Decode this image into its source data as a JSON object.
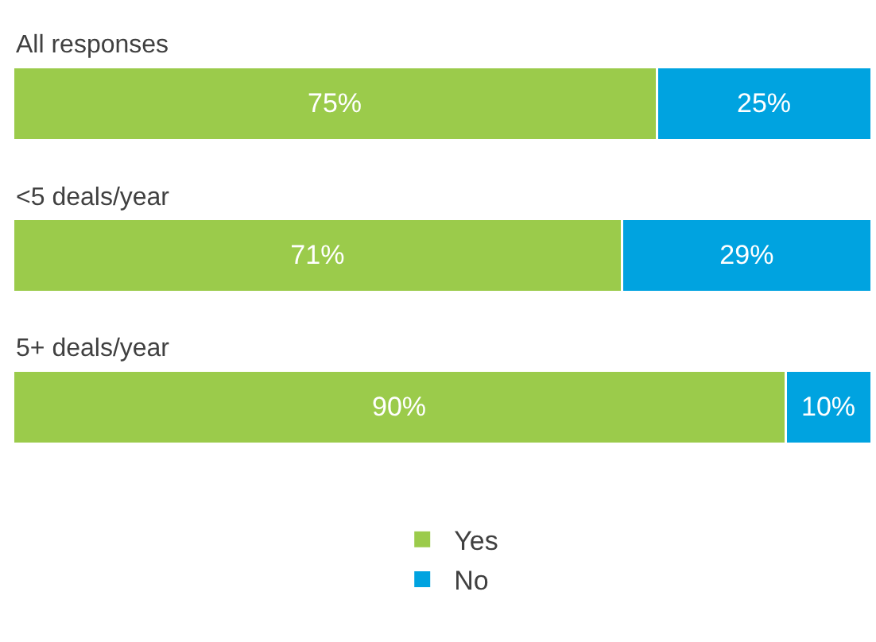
{
  "chart_data": {
    "type": "bar",
    "orientation": "horizontal",
    "stacked": true,
    "categories": [
      "All responses",
      "<5 deals/year",
      "5+ deals/year"
    ],
    "series": [
      {
        "name": "Yes",
        "color": "#9bcb4b",
        "values": [
          75,
          71,
          90
        ],
        "value_labels": [
          "75%",
          "71%",
          "90%"
        ]
      },
      {
        "name": "No",
        "color": "#00a3e0",
        "values": [
          25,
          29,
          10
        ],
        "value_labels": [
          "25%",
          "29%",
          "10%"
        ]
      }
    ],
    "xlim": [
      0,
      100
    ],
    "tick_labels": false,
    "legend": "bottom"
  }
}
